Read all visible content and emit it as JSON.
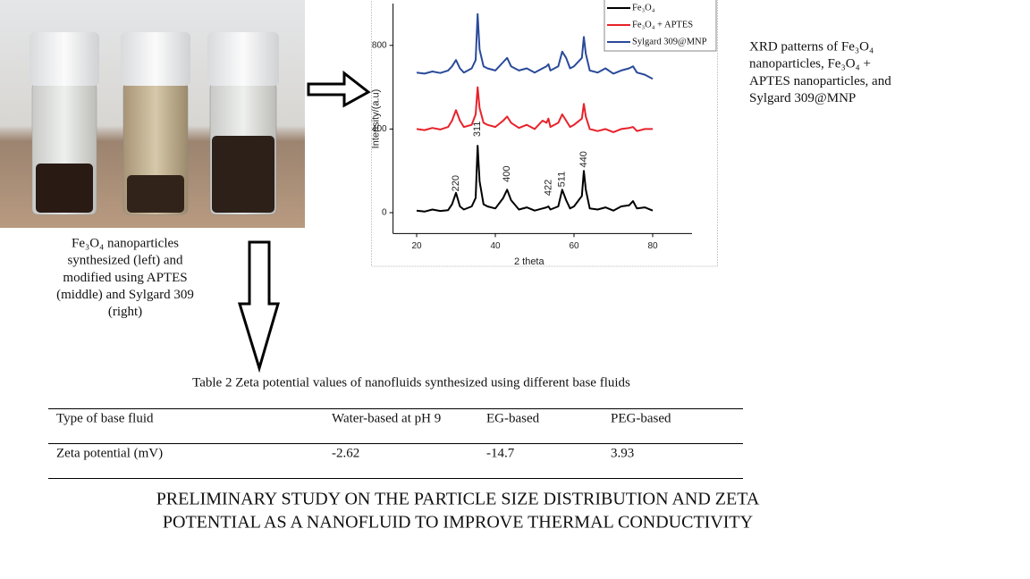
{
  "photo_caption_lines": [
    "Fe₃O₄ nanoparticles",
    "synthesized (left) and",
    "modified using APTES",
    "(middle) and Sylgard 309",
    "(right)"
  ],
  "xrd_chart": {
    "type": "line",
    "xlabel": "2 theta",
    "ylabel": "Intensity/(a.u)",
    "x": [
      20,
      22,
      24,
      26,
      28,
      29,
      30,
      31,
      32,
      34,
      35,
      35.5,
      36,
      37,
      38,
      40,
      42,
      43,
      44,
      46,
      48,
      50,
      52,
      53,
      53.5,
      54,
      56,
      57,
      58,
      59,
      60,
      62,
      62.5,
      63,
      64,
      66,
      68,
      70,
      72,
      74,
      75,
      76,
      78,
      80
    ],
    "series": [
      {
        "name": "Fe₃O₄",
        "color": "#000000",
        "values": [
          10,
          5,
          15,
          8,
          12,
          40,
          95,
          30,
          15,
          30,
          70,
          320,
          150,
          40,
          30,
          20,
          70,
          110,
          60,
          15,
          25,
          10,
          20,
          25,
          30,
          15,
          30,
          110,
          60,
          20,
          30,
          80,
          200,
          110,
          20,
          15,
          25,
          10,
          30,
          35,
          55,
          20,
          25,
          10
        ]
      },
      {
        "name": "Fe₃O₄ + APTES",
        "color": "#e8222a",
        "values": [
          400,
          395,
          405,
          398,
          410,
          440,
          490,
          440,
          410,
          420,
          470,
          600,
          500,
          430,
          420,
          410,
          440,
          460,
          430,
          405,
          420,
          400,
          440,
          430,
          450,
          410,
          430,
          470,
          440,
          410,
          420,
          450,
          520,
          460,
          400,
          390,
          400,
          385,
          400,
          405,
          410,
          390,
          400,
          400
        ]
      },
      {
        "name": "Sylgard 309@MNP",
        "color": "#2a4a9a",
        "values": [
          670,
          665,
          675,
          668,
          680,
          700,
          730,
          690,
          670,
          690,
          730,
          950,
          780,
          700,
          690,
          680,
          720,
          740,
          700,
          680,
          690,
          670,
          690,
          700,
          710,
          680,
          700,
          770,
          740,
          690,
          700,
          740,
          840,
          760,
          680,
          670,
          690,
          665,
          680,
          690,
          700,
          670,
          660,
          640
        ]
      }
    ],
    "annotations": [
      {
        "text": "220",
        "x": 30,
        "y": 140
      },
      {
        "text": "311",
        "x": 35.5,
        "y": 400
      },
      {
        "text": "400",
        "x": 43,
        "y": 185
      },
      {
        "text": "422",
        "x": 53.5,
        "y": 120
      },
      {
        "text": "511",
        "x": 57,
        "y": 160
      },
      {
        "text": "440",
        "x": 62.5,
        "y": 255
      }
    ],
    "xlim": [
      14,
      90
    ],
    "ylim": [
      -100,
      1000
    ],
    "xticks": [
      20,
      40,
      60,
      80
    ],
    "yticks": [
      0,
      400,
      800
    ],
    "legend": "top-right"
  },
  "xrd_caption_lines": [
    "XRD patterns of Fe₃O₄",
    "nanoparticles, Fe₃O₄ +",
    "APTES nanoparticles, and",
    "Sylgard 309@MNP"
  ],
  "table": {
    "caption": "Table 2   Zeta potential values of nanofluids synthesized using different base fluids",
    "rows": [
      [
        "Type of base fluid",
        "Water-based at pH 9",
        "EG-based",
        "PEG-based"
      ],
      [
        "Zeta potential (mV)",
        "-2.62",
        "-14.7",
        "3.93"
      ]
    ]
  },
  "title_lines": [
    "PRELIMINARY STUDY ON THE PARTICLE SIZE DISTRIBUTION AND ZETA",
    "POTENTIAL AS A NANOFLUID TO IMPROVE THERMAL CONDUCTIVITY"
  ]
}
